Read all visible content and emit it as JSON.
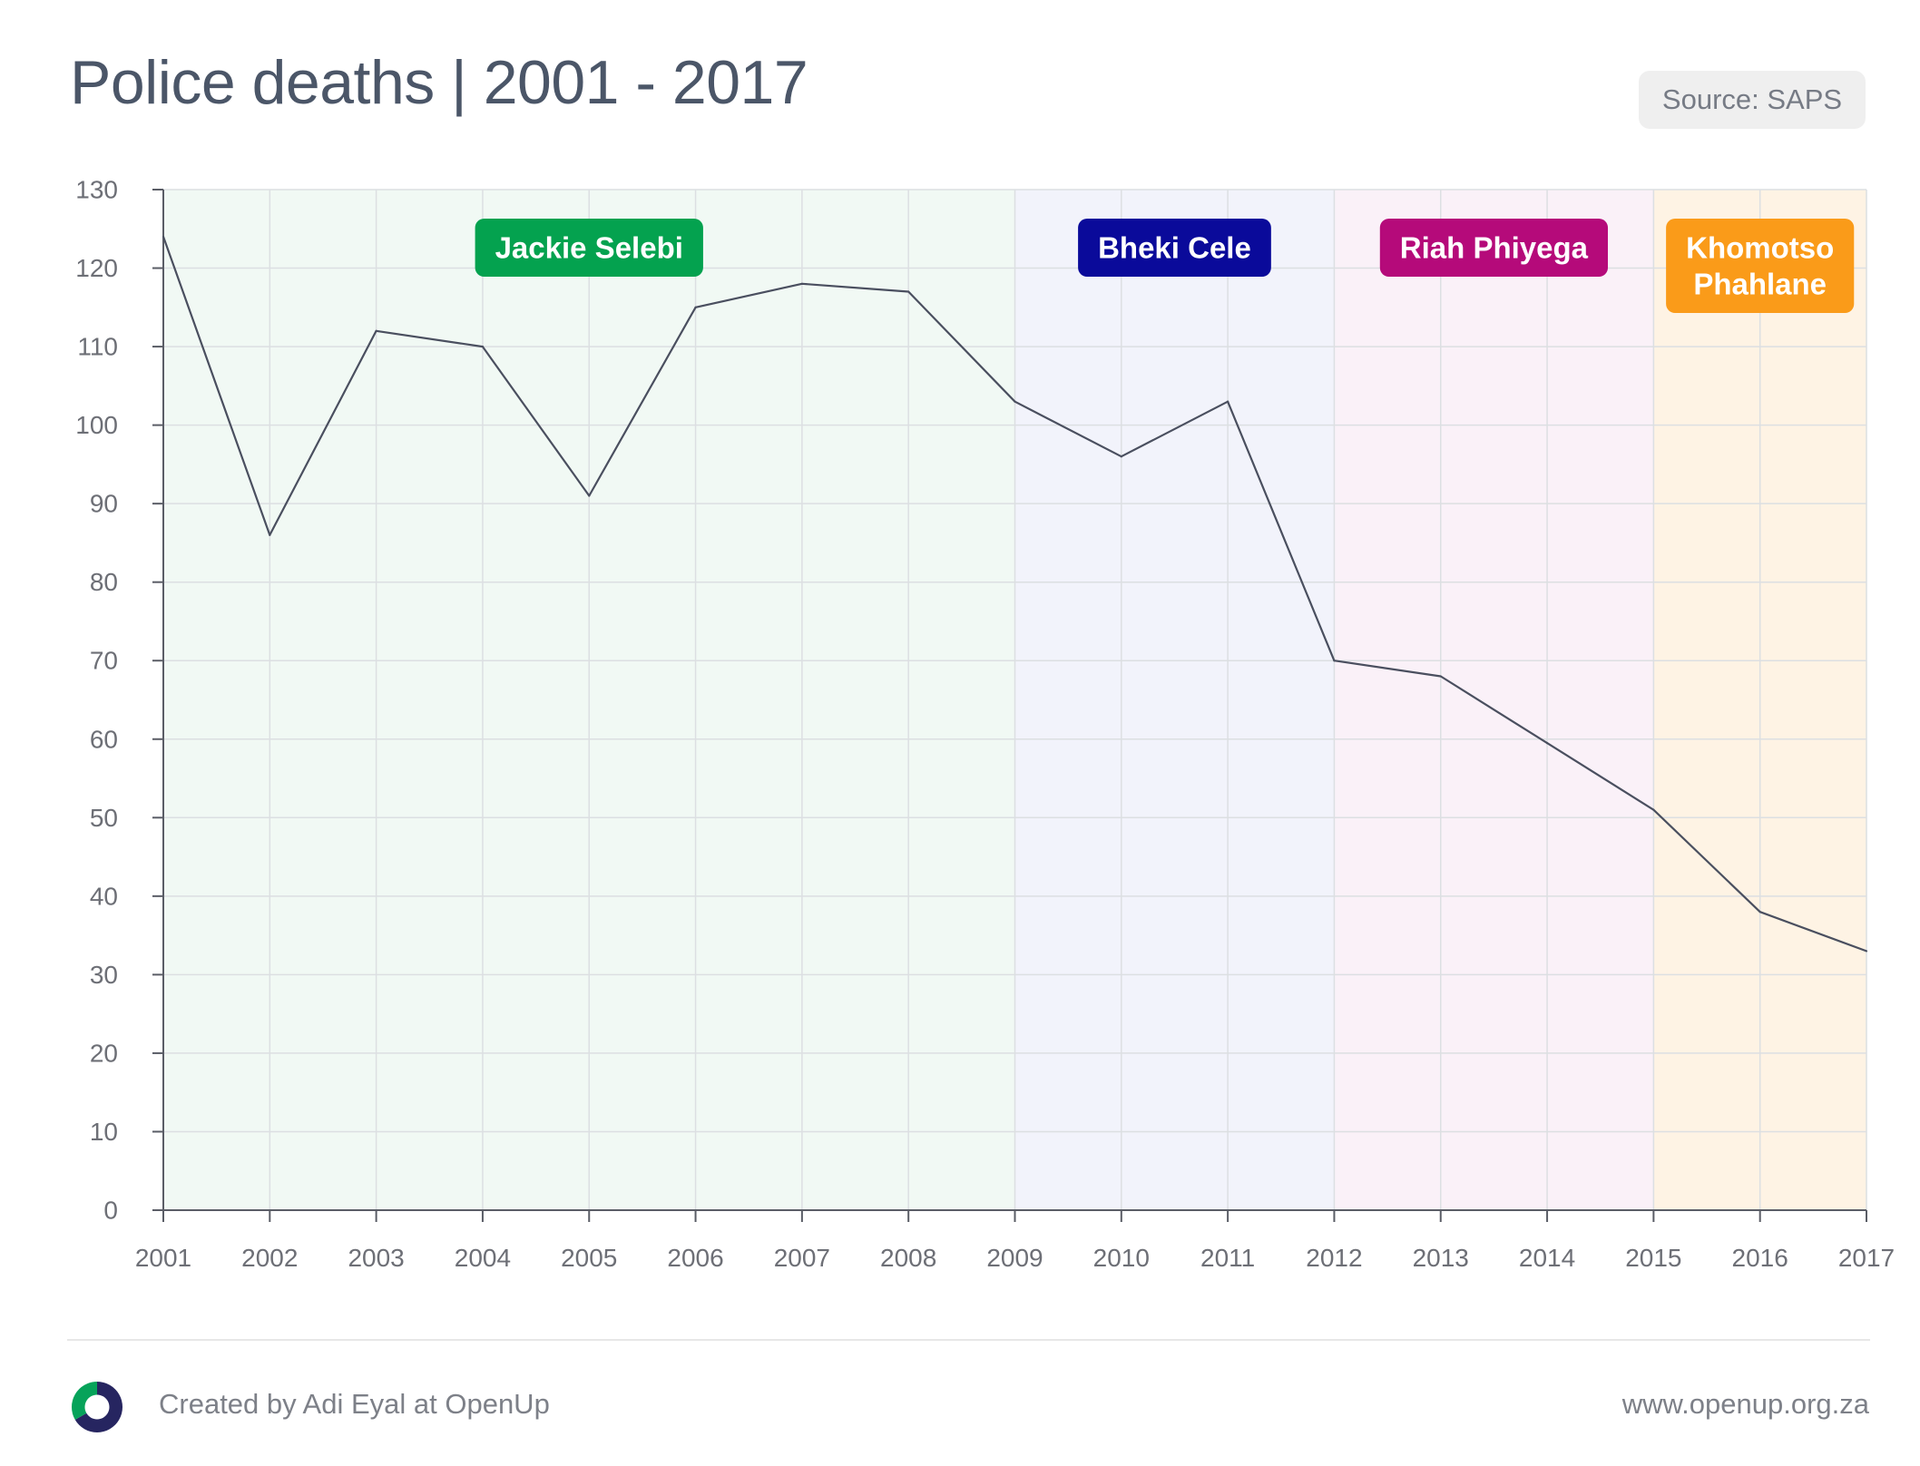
{
  "header": {
    "title": "Police deaths | 2001 - 2017",
    "source_badge": "Source: SAPS"
  },
  "footer": {
    "credit": "Created by Adi Eyal at OpenUp",
    "url": "www.openup.org.za",
    "logo_icon": "openup-ring-logo-icon"
  },
  "colors": {
    "line": "#4a4f5f",
    "grid": "#dcdfe2",
    "axis": "#5a5d66"
  },
  "chart_data": {
    "type": "line",
    "title": "Police deaths | 2001 - 2017",
    "xlabel": "",
    "ylabel": "",
    "ylim": [
      0,
      130
    ],
    "yticks": [
      0,
      10,
      20,
      30,
      40,
      50,
      60,
      70,
      80,
      90,
      100,
      110,
      120,
      130
    ],
    "grid": true,
    "x": [
      2001,
      2002,
      2003,
      2004,
      2005,
      2006,
      2007,
      2008,
      2009,
      2010,
      2011,
      2012,
      2013,
      2014,
      2015,
      2016,
      2017
    ],
    "series": [
      {
        "values": [
          124,
          86,
          112,
          110,
          91,
          115,
          118,
          117,
          103,
          96,
          103,
          70,
          68,
          59.5,
          51,
          38,
          33
        ]
      }
    ],
    "eras": [
      {
        "label": "Jackie Selebi",
        "start": 2001,
        "end": 2009,
        "bg": "#f1f9f4",
        "badge": "#04a24f"
      },
      {
        "label": "Bheki Cele",
        "start": 2009,
        "end": 2012,
        "bg": "#f2f3fb",
        "badge": "#0a0a9a"
      },
      {
        "label": "Riah Phiyega",
        "start": 2012,
        "end": 2015,
        "bg": "#faf1f8",
        "badge": "#b50a7a"
      },
      {
        "label": "Khomotso Phahlane",
        "start": 2015,
        "end": 2017,
        "bg": "#fef3e4",
        "badge": "#fa9b19"
      }
    ]
  }
}
